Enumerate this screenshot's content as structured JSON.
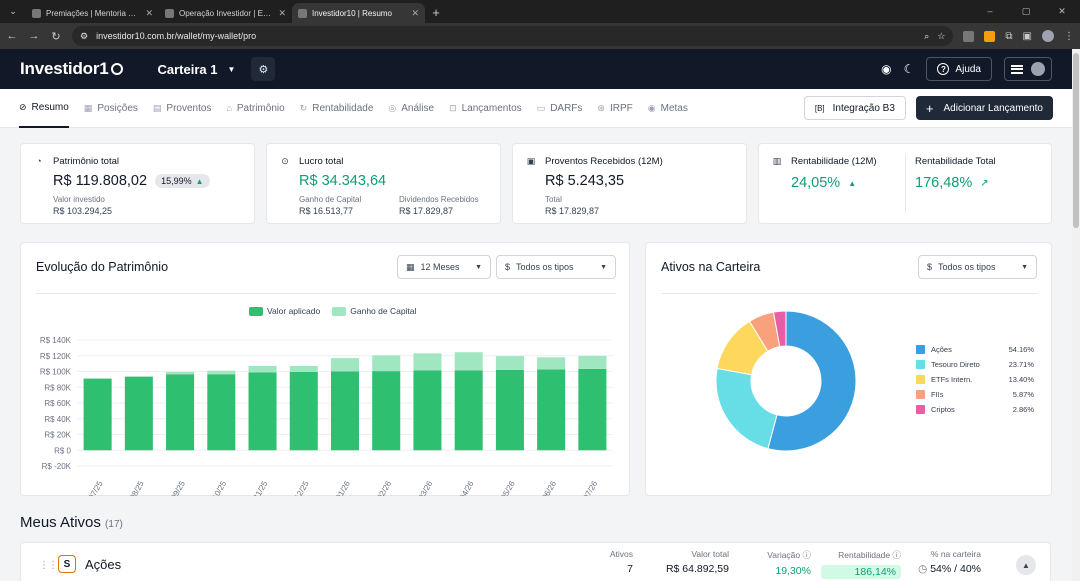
{
  "browser": {
    "tabs": [
      {
        "title": "Premiações | Mentoria Virando"
      },
      {
        "title": "Operação Investidor | Evento O"
      },
      {
        "title": "Investidor10 | Resumo"
      }
    ],
    "url": "investidor10.com.br/wallet/my-wallet/pro",
    "new_tab": "+",
    "minimize": "–",
    "restore": "▢",
    "close": "✕"
  },
  "header": {
    "logo_text": "Investidor1",
    "wallet_name": "Carteira 1",
    "help_label": "Ajuda"
  },
  "nav": {
    "items": [
      {
        "label": "Resumo",
        "icon": "⊘"
      },
      {
        "label": "Posições",
        "icon": "▦"
      },
      {
        "label": "Proventos",
        "icon": "▤"
      },
      {
        "label": "Patrimônio",
        "icon": "⌂"
      },
      {
        "label": "Rentabilidade",
        "icon": "↻"
      },
      {
        "label": "Análise",
        "icon": "◎"
      },
      {
        "label": "Lançamentos",
        "icon": "⊡"
      },
      {
        "label": "DARFs",
        "icon": "▭"
      },
      {
        "label": "IRPF",
        "icon": "⊛"
      },
      {
        "label": "Metas",
        "icon": "◉"
      }
    ],
    "integracao_label": "Integração B3",
    "integracao_icon": "[B]",
    "add_label": "Adicionar Lançamento"
  },
  "summary": {
    "patrimonio": {
      "label": "Patrimônio total",
      "value": "R$ 119.808,02",
      "pct": "15,99%",
      "sub_label": "Valor investido",
      "sub_value": "R$ 103.294,25"
    },
    "lucro": {
      "label": "Lucro total",
      "value": "R$ 34.343,64",
      "sub1_label": "Ganho de Capital",
      "sub1_value": "R$ 16.513,77",
      "sub2_label": "Dividendos Recebidos",
      "sub2_value": "R$ 17.829,87"
    },
    "proventos": {
      "label": "Proventos Recebidos (12M)",
      "value": "R$ 5.243,35",
      "sub_label": "Total",
      "sub_value": "R$ 17.829,87"
    },
    "rentabilidade": {
      "label": "Rentabilidade (12M)",
      "value": "24,05%",
      "total_label": "Rentabilidade Total",
      "total_value": "176,48%"
    }
  },
  "evolucao": {
    "title": "Evolução do Patrimônio",
    "period": "12 Meses",
    "tipo": "Todos os tipos"
  },
  "ativos": {
    "title": "Ativos na Carteira",
    "tipo": "Todos os tipos"
  },
  "chart_data": [
    {
      "type": "bar",
      "stacked": true,
      "categories": [
        "07/25",
        "08/25",
        "09/25",
        "10/25",
        "11/25",
        "12/25",
        "01/26",
        "02/26",
        "03/26",
        "04/26",
        "05/26",
        "06/26",
        "07/26"
      ],
      "series": [
        {
          "name": "Valor aplicado",
          "color": "#2fbf71",
          "values": [
            91000,
            93500,
            96500,
            96500,
            99000,
            99500,
            100000,
            100500,
            101500,
            101500,
            102000,
            102500,
            103300
          ]
        },
        {
          "name": "Ganho de Capital",
          "color": "#9fe6c1",
          "values": [
            0,
            0,
            3000,
            4500,
            8000,
            7500,
            17000,
            20000,
            21500,
            23000,
            17500,
            15500,
            16500
          ]
        }
      ],
      "y_ticks": [
        "R$ 140K",
        "R$ 120K",
        "R$ 100K",
        "R$ 80K",
        "R$ 60K",
        "R$ 40K",
        "R$ 20K",
        "R$ 0",
        "R$ -20K"
      ],
      "ylim": [
        -20000,
        140000
      ],
      "legend": "top-center",
      "grid": true
    },
    {
      "type": "pie",
      "donut": true,
      "slices": [
        {
          "label": "Ações",
          "value": 54.16,
          "display": "54.16%",
          "color": "#3b9ede"
        },
        {
          "label": "Tesouro Direto",
          "value": 23.71,
          "display": "23.71%",
          "color": "#67dde6"
        },
        {
          "label": "ETFs Intern.",
          "value": 13.4,
          "display": "13.40%",
          "color": "#fdd85d"
        },
        {
          "label": "FIIs",
          "value": 5.87,
          "display": "5.87%",
          "color": "#f9a07c"
        },
        {
          "label": "Criptos",
          "value": 2.86,
          "display": "2.86%",
          "color": "#e55fa5"
        }
      ],
      "legend": "right"
    }
  ],
  "meus_ativos": {
    "title": "Meus Ativos",
    "count": "(17)",
    "row": {
      "badge": "S",
      "name": "Ações",
      "ativos_label": "Ativos",
      "ativos_value": "7",
      "valor_label": "Valor total",
      "valor_value": "R$ 64.892,59",
      "variacao_label": "Variação ⓘ",
      "variacao_value": "19,30%",
      "rent_label": "Rentabilidade ⓘ",
      "rent_value": "186,14%",
      "pct_label": "% na carteira",
      "pct_value": "54%",
      "pct_target": "40%"
    }
  }
}
